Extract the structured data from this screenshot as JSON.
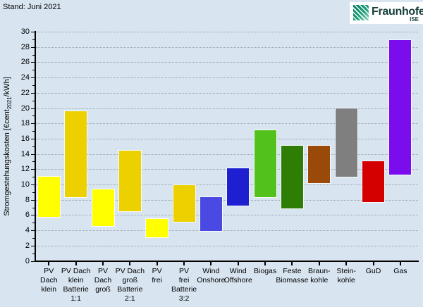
{
  "header": {
    "stand": "Stand: Juni 2021"
  },
  "logo": {
    "brand": "Fraunhofer",
    "institute": "ISE"
  },
  "chart_data": {
    "type": "bar",
    "variant": "floating-range-bars",
    "title": "",
    "ylabel_pre": "Stromgestehungskosten [€cent",
    "ylabel_sub": "2021",
    "ylabel_post": "/kWh]",
    "unit": "€cent2021/kWh",
    "ylim": [
      0,
      30
    ],
    "ytick_step": 2,
    "yticks": [
      0,
      2,
      4,
      6,
      8,
      10,
      12,
      14,
      16,
      18,
      20,
      22,
      24,
      26,
      28,
      30
    ],
    "grid": "horizontal dotted lines at every 2 units",
    "legend": "none",
    "background_color": "#d8e4f0",
    "grid_color": "#98a3ad",
    "axis_color": "#000000",
    "bars": [
      {
        "name": "PV Dach klein",
        "label_lines": [
          "PV",
          "Dach",
          "klein"
        ],
        "min": 5.8,
        "max": 11.0,
        "color": "#ffff00"
      },
      {
        "name": "PV Dach klein Batterie 1:1",
        "label_lines": [
          "PV Dach",
          "klein",
          "Batterie",
          "1:1"
        ],
        "min": 8.3,
        "max": 19.6,
        "color": "#ecd000"
      },
      {
        "name": "PV Dach groß",
        "label_lines": [
          "PV",
          "Dach",
          "groß"
        ],
        "min": 4.6,
        "max": 9.4,
        "color": "#ffff00"
      },
      {
        "name": "PV Dach groß Batterie 2:1",
        "label_lines": [
          "PV Dach",
          "groß",
          "Batterie",
          "2:1"
        ],
        "min": 6.5,
        "max": 14.4,
        "color": "#ecd000"
      },
      {
        "name": "PV frei",
        "label_lines": [
          "PV",
          "frei"
        ],
        "min": 3.1,
        "max": 5.5,
        "color": "#ffff00"
      },
      {
        "name": "PV frei Batterie 3:2",
        "label_lines": [
          "PV",
          "frei",
          "Batterie",
          "3:2"
        ],
        "min": 5.1,
        "max": 9.9,
        "color": "#ecd000"
      },
      {
        "name": "Wind Onshore",
        "label_lines": [
          "Wind",
          "Onshore"
        ],
        "min": 3.9,
        "max": 8.3,
        "color": "#4a4ae2"
      },
      {
        "name": "Wind Offshore",
        "label_lines": [
          "Wind",
          "Offshore"
        ],
        "min": 7.2,
        "max": 12.1,
        "color": "#1f1fd2"
      },
      {
        "name": "Biogas",
        "label_lines": [
          "Biogas"
        ],
        "min": 8.3,
        "max": 17.1,
        "color": "#52c11b"
      },
      {
        "name": "Feste Biomasse",
        "label_lines": [
          "Feste",
          "Biomasse"
        ],
        "min": 6.9,
        "max": 15.1,
        "color": "#2e7d05"
      },
      {
        "name": "Braunkohle",
        "label_lines": [
          "Braun-",
          "kohle"
        ],
        "min": 10.2,
        "max": 15.1,
        "color": "#9a4a08"
      },
      {
        "name": "Steinkohle",
        "label_lines": [
          "Stein-",
          "kohle"
        ],
        "min": 11.0,
        "max": 20.0,
        "color": "#7f7f7f"
      },
      {
        "name": "GuD",
        "label_lines": [
          "GuD"
        ],
        "min": 7.7,
        "max": 13.0,
        "color": "#d40000"
      },
      {
        "name": "Gas",
        "label_lines": [
          "Gas"
        ],
        "min": 11.3,
        "max": 28.9,
        "color": "#7a0ced"
      }
    ]
  }
}
